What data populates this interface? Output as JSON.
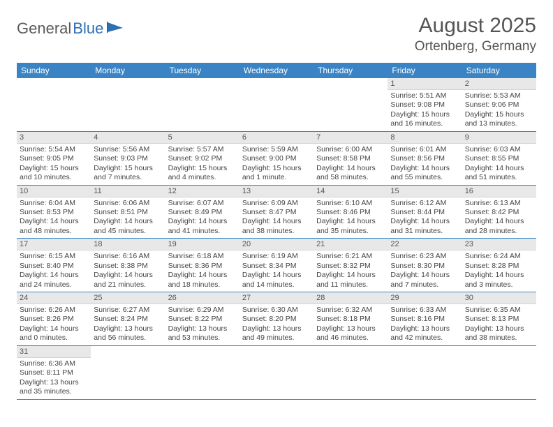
{
  "logo": {
    "part1": "General",
    "part2": "Blue"
  },
  "title": "August 2025",
  "location": "Ortenberg, Germany",
  "colors": {
    "header_bg": "#3a84c5",
    "header_fg": "#ffffff",
    "daynum_bg": "#e8e8e8",
    "row_divider": "#3a84c5",
    "logo_gray": "#5a5a5a",
    "logo_blue": "#2d6fb5",
    "text": "#444444",
    "page_bg": "#ffffff"
  },
  "weekdays": [
    "Sunday",
    "Monday",
    "Tuesday",
    "Wednesday",
    "Thursday",
    "Friday",
    "Saturday"
  ],
  "weeks": [
    [
      {
        "day": "",
        "sunrise": "",
        "sunset": "",
        "daylight": ""
      },
      {
        "day": "",
        "sunrise": "",
        "sunset": "",
        "daylight": ""
      },
      {
        "day": "",
        "sunrise": "",
        "sunset": "",
        "daylight": ""
      },
      {
        "day": "",
        "sunrise": "",
        "sunset": "",
        "daylight": ""
      },
      {
        "day": "",
        "sunrise": "",
        "sunset": "",
        "daylight": ""
      },
      {
        "day": "1",
        "sunrise": "Sunrise: 5:51 AM",
        "sunset": "Sunset: 9:08 PM",
        "daylight": "Daylight: 15 hours and 16 minutes."
      },
      {
        "day": "2",
        "sunrise": "Sunrise: 5:53 AM",
        "sunset": "Sunset: 9:06 PM",
        "daylight": "Daylight: 15 hours and 13 minutes."
      }
    ],
    [
      {
        "day": "3",
        "sunrise": "Sunrise: 5:54 AM",
        "sunset": "Sunset: 9:05 PM",
        "daylight": "Daylight: 15 hours and 10 minutes."
      },
      {
        "day": "4",
        "sunrise": "Sunrise: 5:56 AM",
        "sunset": "Sunset: 9:03 PM",
        "daylight": "Daylight: 15 hours and 7 minutes."
      },
      {
        "day": "5",
        "sunrise": "Sunrise: 5:57 AM",
        "sunset": "Sunset: 9:02 PM",
        "daylight": "Daylight: 15 hours and 4 minutes."
      },
      {
        "day": "6",
        "sunrise": "Sunrise: 5:59 AM",
        "sunset": "Sunset: 9:00 PM",
        "daylight": "Daylight: 15 hours and 1 minute."
      },
      {
        "day": "7",
        "sunrise": "Sunrise: 6:00 AM",
        "sunset": "Sunset: 8:58 PM",
        "daylight": "Daylight: 14 hours and 58 minutes."
      },
      {
        "day": "8",
        "sunrise": "Sunrise: 6:01 AM",
        "sunset": "Sunset: 8:56 PM",
        "daylight": "Daylight: 14 hours and 55 minutes."
      },
      {
        "day": "9",
        "sunrise": "Sunrise: 6:03 AM",
        "sunset": "Sunset: 8:55 PM",
        "daylight": "Daylight: 14 hours and 51 minutes."
      }
    ],
    [
      {
        "day": "10",
        "sunrise": "Sunrise: 6:04 AM",
        "sunset": "Sunset: 8:53 PM",
        "daylight": "Daylight: 14 hours and 48 minutes."
      },
      {
        "day": "11",
        "sunrise": "Sunrise: 6:06 AM",
        "sunset": "Sunset: 8:51 PM",
        "daylight": "Daylight: 14 hours and 45 minutes."
      },
      {
        "day": "12",
        "sunrise": "Sunrise: 6:07 AM",
        "sunset": "Sunset: 8:49 PM",
        "daylight": "Daylight: 14 hours and 41 minutes."
      },
      {
        "day": "13",
        "sunrise": "Sunrise: 6:09 AM",
        "sunset": "Sunset: 8:47 PM",
        "daylight": "Daylight: 14 hours and 38 minutes."
      },
      {
        "day": "14",
        "sunrise": "Sunrise: 6:10 AM",
        "sunset": "Sunset: 8:46 PM",
        "daylight": "Daylight: 14 hours and 35 minutes."
      },
      {
        "day": "15",
        "sunrise": "Sunrise: 6:12 AM",
        "sunset": "Sunset: 8:44 PM",
        "daylight": "Daylight: 14 hours and 31 minutes."
      },
      {
        "day": "16",
        "sunrise": "Sunrise: 6:13 AM",
        "sunset": "Sunset: 8:42 PM",
        "daylight": "Daylight: 14 hours and 28 minutes."
      }
    ],
    [
      {
        "day": "17",
        "sunrise": "Sunrise: 6:15 AM",
        "sunset": "Sunset: 8:40 PM",
        "daylight": "Daylight: 14 hours and 24 minutes."
      },
      {
        "day": "18",
        "sunrise": "Sunrise: 6:16 AM",
        "sunset": "Sunset: 8:38 PM",
        "daylight": "Daylight: 14 hours and 21 minutes."
      },
      {
        "day": "19",
        "sunrise": "Sunrise: 6:18 AM",
        "sunset": "Sunset: 8:36 PM",
        "daylight": "Daylight: 14 hours and 18 minutes."
      },
      {
        "day": "20",
        "sunrise": "Sunrise: 6:19 AM",
        "sunset": "Sunset: 8:34 PM",
        "daylight": "Daylight: 14 hours and 14 minutes."
      },
      {
        "day": "21",
        "sunrise": "Sunrise: 6:21 AM",
        "sunset": "Sunset: 8:32 PM",
        "daylight": "Daylight: 14 hours and 11 minutes."
      },
      {
        "day": "22",
        "sunrise": "Sunrise: 6:23 AM",
        "sunset": "Sunset: 8:30 PM",
        "daylight": "Daylight: 14 hours and 7 minutes."
      },
      {
        "day": "23",
        "sunrise": "Sunrise: 6:24 AM",
        "sunset": "Sunset: 8:28 PM",
        "daylight": "Daylight: 14 hours and 3 minutes."
      }
    ],
    [
      {
        "day": "24",
        "sunrise": "Sunrise: 6:26 AM",
        "sunset": "Sunset: 8:26 PM",
        "daylight": "Daylight: 14 hours and 0 minutes."
      },
      {
        "day": "25",
        "sunrise": "Sunrise: 6:27 AM",
        "sunset": "Sunset: 8:24 PM",
        "daylight": "Daylight: 13 hours and 56 minutes."
      },
      {
        "day": "26",
        "sunrise": "Sunrise: 6:29 AM",
        "sunset": "Sunset: 8:22 PM",
        "daylight": "Daylight: 13 hours and 53 minutes."
      },
      {
        "day": "27",
        "sunrise": "Sunrise: 6:30 AM",
        "sunset": "Sunset: 8:20 PM",
        "daylight": "Daylight: 13 hours and 49 minutes."
      },
      {
        "day": "28",
        "sunrise": "Sunrise: 6:32 AM",
        "sunset": "Sunset: 8:18 PM",
        "daylight": "Daylight: 13 hours and 46 minutes."
      },
      {
        "day": "29",
        "sunrise": "Sunrise: 6:33 AM",
        "sunset": "Sunset: 8:16 PM",
        "daylight": "Daylight: 13 hours and 42 minutes."
      },
      {
        "day": "30",
        "sunrise": "Sunrise: 6:35 AM",
        "sunset": "Sunset: 8:13 PM",
        "daylight": "Daylight: 13 hours and 38 minutes."
      }
    ],
    [
      {
        "day": "31",
        "sunrise": "Sunrise: 6:36 AM",
        "sunset": "Sunset: 8:11 PM",
        "daylight": "Daylight: 13 hours and 35 minutes."
      },
      {
        "day": "",
        "sunrise": "",
        "sunset": "",
        "daylight": ""
      },
      {
        "day": "",
        "sunrise": "",
        "sunset": "",
        "daylight": ""
      },
      {
        "day": "",
        "sunrise": "",
        "sunset": "",
        "daylight": ""
      },
      {
        "day": "",
        "sunrise": "",
        "sunset": "",
        "daylight": ""
      },
      {
        "day": "",
        "sunrise": "",
        "sunset": "",
        "daylight": ""
      },
      {
        "day": "",
        "sunrise": "",
        "sunset": "",
        "daylight": ""
      }
    ]
  ]
}
